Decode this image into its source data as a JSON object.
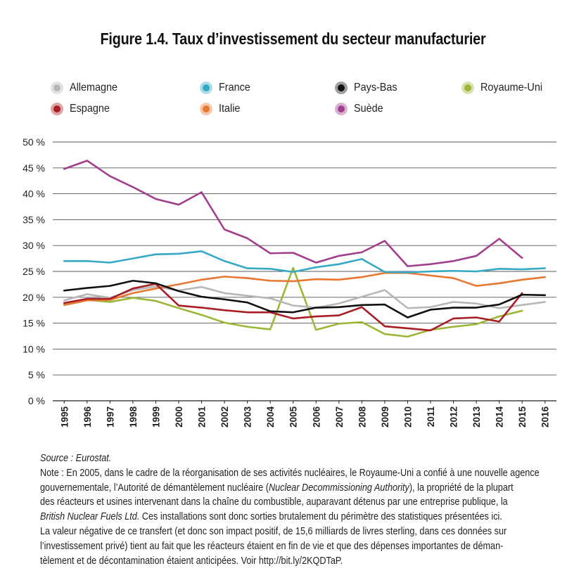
{
  "chart_data": {
    "type": "line",
    "title": "Figure 1.4. Taux d’investissement du secteur manufacturier",
    "xlabel": "",
    "ylabel": "",
    "x": [
      1995,
      1996,
      1997,
      1998,
      1999,
      2000,
      2001,
      2002,
      2003,
      2004,
      2005,
      2006,
      2007,
      2008,
      2009,
      2010,
      2011,
      2012,
      2013,
      2014,
      2015,
      2016
    ],
    "ylim": [
      0,
      50
    ],
    "y_ticks": [
      0,
      5,
      10,
      15,
      20,
      25,
      30,
      35,
      40,
      45,
      50
    ],
    "y_tick_suffix": " %",
    "grid": true,
    "legend_position": "top",
    "series": [
      {
        "name": "Allemagne",
        "color": "#b7b7b7",
        "values": [
          19.4,
          20.6,
          19.9,
          21.4,
          22.1,
          21.3,
          22.0,
          20.8,
          20.3,
          19.8,
          18.4,
          18.0,
          18.8,
          20.1,
          21.4,
          17.9,
          18.1,
          19.1,
          18.8,
          17.9,
          18.5,
          19.1
        ]
      },
      {
        "name": "Espagne",
        "color": "#a91d25",
        "values": [
          18.9,
          19.7,
          19.7,
          21.7,
          22.6,
          18.4,
          18.0,
          17.5,
          17.1,
          17.1,
          15.9,
          16.3,
          16.5,
          18.1,
          14.4,
          14.0,
          13.6,
          15.9,
          16.1,
          15.3,
          20.8,
          null
        ]
      },
      {
        "name": "France",
        "color": "#35a9c6",
        "values": [
          27.0,
          27.0,
          26.7,
          27.5,
          28.3,
          28.4,
          28.9,
          27.0,
          25.6,
          25.5,
          24.9,
          25.8,
          26.4,
          27.4,
          24.9,
          24.8,
          25.0,
          25.1,
          25.0,
          25.5,
          25.4,
          25.6
        ]
      },
      {
        "name": "Italie",
        "color": "#e77731",
        "values": [
          18.5,
          19.4,
          19.5,
          20.8,
          21.7,
          22.5,
          23.4,
          24.0,
          23.7,
          23.2,
          23.1,
          23.5,
          23.4,
          23.9,
          24.7,
          24.7,
          24.2,
          23.7,
          22.2,
          22.7,
          23.4,
          23.9
        ]
      },
      {
        "name": "Pays-Bas",
        "color": "#111111",
        "values": [
          21.3,
          21.8,
          22.2,
          23.2,
          22.7,
          21.2,
          20.1,
          19.6,
          19.0,
          17.3,
          17.1,
          18.0,
          18.1,
          18.5,
          18.6,
          16.1,
          17.6,
          18.0,
          18.0,
          18.6,
          20.5,
          20.4
        ]
      },
      {
        "name": "Suède",
        "color": "#a23f8d",
        "values": [
          44.8,
          46.4,
          43.4,
          41.3,
          39.0,
          37.9,
          40.3,
          33.1,
          31.4,
          28.5,
          28.6,
          26.7,
          28.0,
          28.7,
          30.9,
          26.0,
          26.4,
          27.0,
          28.0,
          31.3,
          27.6,
          null
        ]
      },
      {
        "name": "Royaume-Uni",
        "color": "#9bb737",
        "values": [
          18.6,
          19.5,
          19.1,
          19.9,
          19.3,
          17.9,
          16.6,
          15.1,
          14.3,
          13.8,
          25.7,
          13.7,
          14.9,
          15.2,
          12.9,
          12.4,
          13.7,
          14.3,
          14.8,
          16.3,
          17.4,
          null
        ]
      }
    ]
  },
  "notes": {
    "source": "Source : Eurostat.",
    "line1": "Note : En 2005, dans le cadre de la réorganisation de ses activités nucléaires, le Royaume-Uni a confié à une nouvelle agence",
    "line2_a": "gouvernementale, l’Autorité de démantèlement nucléaire (",
    "line2_b": "Nuclear Decommissioning Authority",
    "line2_c": "), la propriété de la plupart",
    "line3": "des réacteurs et usines intervenant dans la chaîne du combustible, auparavant détenus par une entreprise publique, la",
    "line4_a": "British Nuclear Fuels Ltd.",
    "line4_b": " Ces installations sont donc sorties brutalement du périmètre des statistiques présentées ici.",
    "line5": "La valeur négative de ce transfert (et donc son impact positif, de 15,6 milliards de livres sterling, dans ces données sur",
    "line6": "l’investissement privé) tient au fait que les réacteurs étaient en fin de vie et que des dépenses importantes de démantèlement",
    "line6_a": "l’investissement privé) tient au fait que les réacteurs étaient en fin de vie et que des dépenses importantes de démantèlement",
    "line6_display": "l’investissement privé) tient au fait que les réacteurs étaient en fin de vie et que des dépenses importantes de déman-",
    "line7": "tèlement et de décontamination étaient anticipées. Voir http://bit.ly/2KQDTaP."
  }
}
